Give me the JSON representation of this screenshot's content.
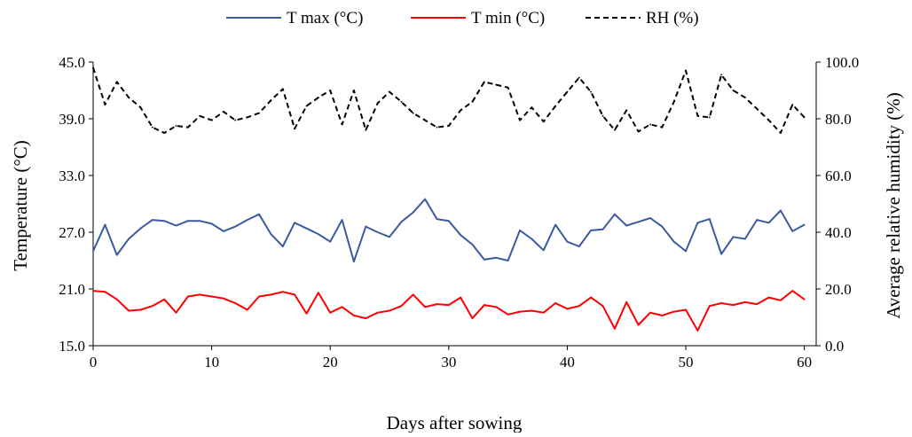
{
  "chart_data": {
    "type": "line",
    "xlabel": "Days after sowing",
    "ylabel_left": "Temperature (°C)",
    "ylabel_right": "Average relative humidity (%)",
    "x_ticks": [
      "0",
      "10",
      "20",
      "30",
      "40",
      "50",
      "60"
    ],
    "y_left_ticks": [
      "15.0",
      "21.0",
      "27.0",
      "33.0",
      "39.0",
      "45.0"
    ],
    "y_right_ticks": [
      "0.0",
      "20.0",
      "40.0",
      "60.0",
      "80.0",
      "100.0"
    ],
    "xlim": [
      0,
      61
    ],
    "ylim_left": [
      15,
      45
    ],
    "ylim_right": [
      0,
      100
    ],
    "grid": false,
    "legend_position": "top",
    "x": [
      0,
      1,
      2,
      3,
      4,
      5,
      6,
      7,
      8,
      9,
      10,
      11,
      12,
      13,
      14,
      15,
      16,
      17,
      18,
      19,
      20,
      21,
      22,
      23,
      24,
      25,
      26,
      27,
      28,
      29,
      30,
      31,
      32,
      33,
      34,
      35,
      36,
      37,
      38,
      39,
      40,
      41,
      42,
      43,
      44,
      45,
      46,
      47,
      48,
      49,
      50,
      51,
      52,
      53,
      54,
      55,
      56,
      57,
      58,
      59,
      60
    ],
    "series": [
      {
        "name": "T max (°C)",
        "axis": "left",
        "color": "#3a5ba0",
        "dash": "solid",
        "values": [
          25.0,
          27.8,
          24.6,
          26.3,
          27.4,
          28.3,
          28.2,
          27.7,
          28.2,
          28.2,
          27.9,
          27.1,
          27.6,
          28.3,
          28.9,
          26.8,
          25.5,
          28.0,
          27.4,
          26.8,
          26.0,
          28.3,
          23.9,
          27.6,
          27.0,
          26.5,
          28.1,
          29.1,
          30.5,
          28.4,
          28.2,
          26.7,
          25.7,
          24.1,
          24.3,
          24.0,
          27.2,
          26.3,
          25.1,
          27.8,
          26.0,
          25.5,
          27.2,
          27.3,
          28.9,
          27.7,
          28.1,
          28.5,
          27.6,
          26.0,
          25.0,
          28.0,
          28.4,
          24.7,
          26.5,
          26.3,
          28.3,
          28.0,
          29.3,
          27.1,
          27.8
        ]
      },
      {
        "name": "T min (°C)",
        "axis": "left",
        "color": "#ff0000",
        "dash": "solid",
        "values": [
          20.8,
          20.7,
          19.9,
          18.7,
          18.8,
          19.2,
          19.9,
          18.5,
          20.2,
          20.4,
          20.2,
          20.0,
          19.5,
          18.8,
          20.2,
          20.4,
          20.7,
          20.4,
          18.4,
          20.6,
          18.5,
          19.1,
          18.2,
          17.9,
          18.5,
          18.7,
          19.2,
          20.4,
          19.1,
          19.4,
          19.3,
          20.1,
          17.9,
          19.3,
          19.1,
          18.3,
          18.6,
          18.7,
          18.5,
          19.5,
          18.9,
          19.2,
          20.1,
          19.2,
          16.8,
          19.6,
          17.2,
          18.5,
          18.2,
          18.6,
          18.8,
          16.6,
          19.2,
          19.5,
          19.3,
          19.6,
          19.4,
          20.1,
          19.8,
          20.8,
          19.9
        ]
      },
      {
        "name": "RH (%)",
        "axis": "right",
        "color": "#000000",
        "dash": "dashed",
        "values": [
          98.0,
          85.0,
          93.0,
          87.5,
          84.0,
          77.0,
          75.0,
          77.5,
          77.0,
          81.0,
          79.5,
          82.5,
          79.5,
          80.5,
          82.0,
          86.5,
          90.5,
          76.5,
          84.5,
          87.5,
          90.0,
          78.0,
          90.0,
          76.0,
          85.5,
          89.5,
          86.0,
          82.0,
          79.5,
          77.0,
          77.5,
          83.0,
          86.0,
          93.0,
          92.0,
          91.0,
          79.5,
          84.0,
          79.0,
          84.5,
          89.5,
          94.5,
          89.5,
          81.0,
          76.0,
          83.0,
          75.5,
          78.0,
          77.0,
          86.0,
          97.0,
          81.0,
          80.5,
          95.5,
          90.0,
          87.5,
          83.5,
          79.5,
          75.0,
          85.0,
          80.5
        ]
      }
    ]
  }
}
